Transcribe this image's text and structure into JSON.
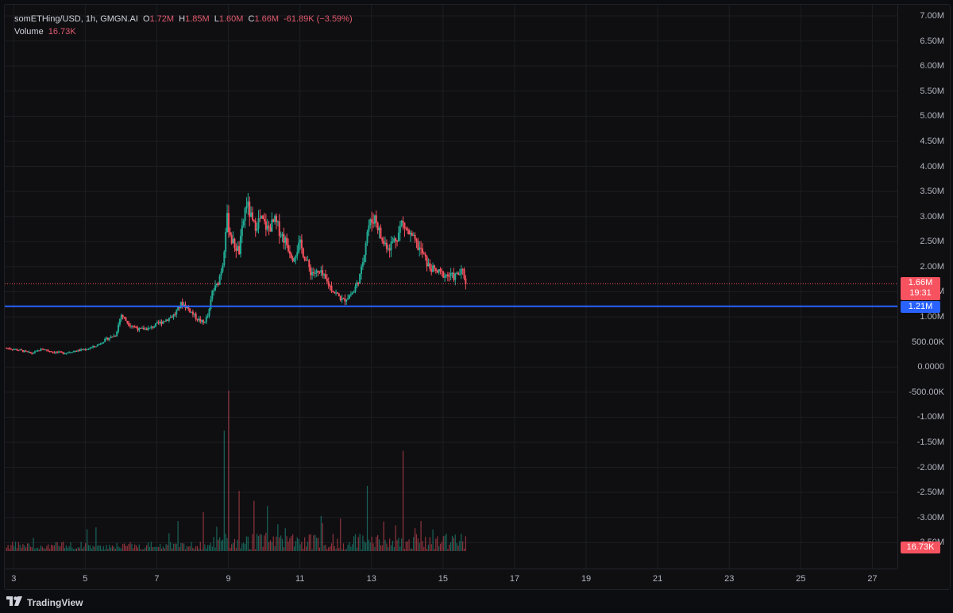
{
  "legend": {
    "symbol": "somETHing/USD, 1h, GMGN.AI",
    "open_label": "O",
    "open": "1.72M",
    "high_label": "H",
    "high": "1.85M",
    "low_label": "L",
    "low": "1.60M",
    "close_label": "C",
    "close": "1.66M",
    "change": "-61.89K (−3.59%)",
    "volume_label": "Volume",
    "volume": "16.73K"
  },
  "price_axis": {
    "labels": [
      "7.00M",
      "6.50M",
      "6.00M",
      "5.50M",
      "5.00M",
      "4.50M",
      "4.00M",
      "3.50M",
      "3.00M",
      "2.50M",
      "2.00M",
      "1.50M",
      "1.00M",
      "500.00K",
      "0.0000",
      "-500.00K",
      "-1.00M",
      "-1.50M",
      "-2.00M",
      "-2.50M",
      "-3.00M",
      "-3.50M"
    ],
    "values": [
      7000000,
      6500000,
      6000000,
      5500000,
      5000000,
      4500000,
      4000000,
      3500000,
      3000000,
      2500000,
      2000000,
      1500000,
      1000000,
      500000,
      0,
      -500000,
      -1000000,
      -1500000,
      -2000000,
      -2500000,
      -3000000,
      -3500000
    ]
  },
  "time_axis": {
    "labels": [
      "3",
      "5",
      "7",
      "9",
      "11",
      "13",
      "15",
      "17",
      "19",
      "21",
      "23",
      "25",
      "27"
    ],
    "days": [
      3,
      5,
      7,
      9,
      11,
      13,
      15,
      17,
      19,
      21,
      23,
      25,
      27
    ]
  },
  "last_price": {
    "label": "1.66M",
    "countdown": "19:31",
    "value": 1660000,
    "color": "#f7525f"
  },
  "horizontal_line": {
    "label": "1.21M",
    "value": 1210000,
    "color": "#2962ff"
  },
  "volume_tag": {
    "label": "16.73K",
    "color": "#f7525f"
  },
  "colors": {
    "up": "#22ab94",
    "down": "#f7525f",
    "grid": "#1c1e23",
    "background": "#0f0f12"
  },
  "chart_data": {
    "type": "candlestick",
    "x_unit": "day of month",
    "xlim": [
      2.75,
      27.7
    ],
    "ylim": [
      -3700000,
      7000000
    ],
    "price_path": [
      [
        2.8,
        380000
      ],
      [
        3.2,
        330000
      ],
      [
        3.5,
        270000
      ],
      [
        3.8,
        360000
      ],
      [
        4.1,
        300000
      ],
      [
        4.4,
        280000
      ],
      [
        4.7,
        320000
      ],
      [
        5.0,
        350000
      ],
      [
        5.3,
        420000
      ],
      [
        5.6,
        560000
      ],
      [
        5.85,
        640000
      ],
      [
        6.0,
        1050000
      ],
      [
        6.2,
        870000
      ],
      [
        6.5,
        750000
      ],
      [
        6.8,
        770000
      ],
      [
        7.0,
        850000
      ],
      [
        7.3,
        960000
      ],
      [
        7.5,
        1050000
      ],
      [
        7.7,
        1280000
      ],
      [
        7.9,
        1150000
      ],
      [
        8.1,
        980000
      ],
      [
        8.3,
        880000
      ],
      [
        8.45,
        1050000
      ],
      [
        8.55,
        1500000
      ],
      [
        8.7,
        1650000
      ],
      [
        8.85,
        2100000
      ],
      [
        8.95,
        3000000
      ],
      [
        9.1,
        2500000
      ],
      [
        9.3,
        2300000
      ],
      [
        9.5,
        3300000
      ],
      [
        9.7,
        2800000
      ],
      [
        9.9,
        2950000
      ],
      [
        10.1,
        2750000
      ],
      [
        10.3,
        2900000
      ],
      [
        10.6,
        2500000
      ],
      [
        10.8,
        2200000
      ],
      [
        11.0,
        2450000
      ],
      [
        11.3,
        1900000
      ],
      [
        11.6,
        1850000
      ],
      [
        11.9,
        1550000
      ],
      [
        12.2,
        1320000
      ],
      [
        12.5,
        1500000
      ],
      [
        12.7,
        1850000
      ],
      [
        12.9,
        2800000
      ],
      [
        13.1,
        3000000
      ],
      [
        13.3,
        2500000
      ],
      [
        13.5,
        2400000
      ],
      [
        13.75,
        2650000
      ],
      [
        13.85,
        2900000
      ],
      [
        14.0,
        2700000
      ],
      [
        14.2,
        2500000
      ],
      [
        14.4,
        2300000
      ],
      [
        14.6,
        2000000
      ],
      [
        14.8,
        1900000
      ],
      [
        15.0,
        1850000
      ],
      [
        15.3,
        1800000
      ],
      [
        15.55,
        1900000
      ],
      [
        15.65,
        1660000
      ]
    ],
    "volume_spikes": [
      [
        8.3,
        780000
      ],
      [
        8.9,
        2400000
      ],
      [
        9.0,
        3200000
      ],
      [
        9.3,
        1200000
      ],
      [
        9.7,
        1000000
      ],
      [
        10.1,
        900000
      ],
      [
        11.6,
        700000
      ],
      [
        12.9,
        1300000
      ],
      [
        13.9,
        2000000
      ],
      [
        14.4,
        600000
      ]
    ]
  }
}
